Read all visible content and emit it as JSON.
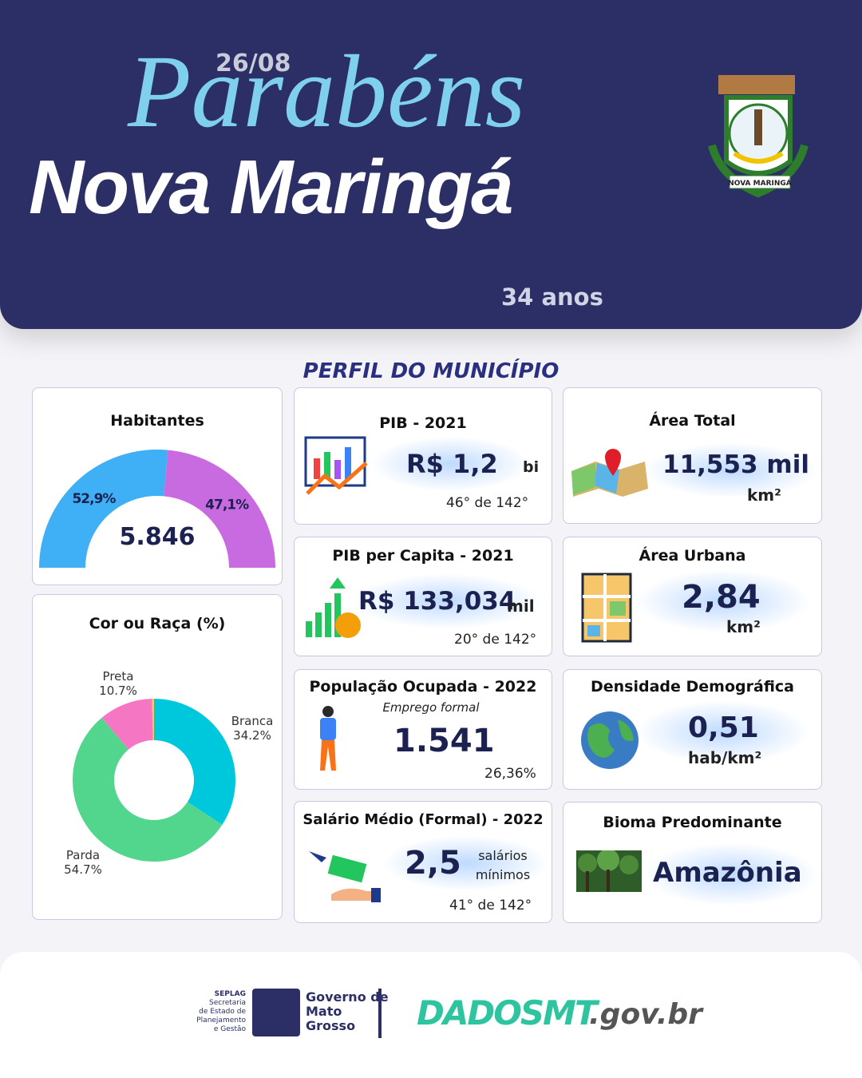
{
  "header": {
    "date": "26/08",
    "greeting": "Parabéns",
    "city": "Nova Maringá",
    "age": "34 anos",
    "emblem_text": "NOVA MARINGÁ"
  },
  "section_title": "PERFIL DO MUNICÍPIO",
  "chart_data": [
    {
      "type": "half-donut",
      "title": "Habitantes",
      "total_label": "5.846",
      "values": [
        52.9,
        47.1
      ],
      "value_labels": [
        "52,9%",
        "47,1%"
      ],
      "colors": [
        "#3fb0f5",
        "#c86ae0"
      ]
    },
    {
      "type": "donut",
      "title": "Cor ou Raça (%)",
      "categories": [
        "Branca",
        "Parda",
        "Preta",
        null
      ],
      "values": [
        34.2,
        54.7,
        10.7,
        0.4
      ],
      "value_labels": [
        "34.2%",
        "54.7%",
        "10.7%",
        null
      ],
      "colors": [
        "#00c8dc",
        "#52d68e",
        "#f576c3",
        "#f2d04f"
      ]
    }
  ],
  "cards": {
    "pib": {
      "title": "PIB - 2021",
      "value": "R$ 1,2",
      "unit": "bi",
      "rank": "46°  de 142°"
    },
    "area_total": {
      "title": "Área Total",
      "value": "11,553 mil",
      "unit": "km²"
    },
    "pib_capita": {
      "title": "PIB per Capita - 2021",
      "value": "R$ 133,034",
      "unit": "mil",
      "rank": "20° de 142°"
    },
    "area_urbana": {
      "title": "Área Urbana",
      "value": "2,84",
      "unit": "km²"
    },
    "populacao": {
      "title": "População  Ocupada - 2022",
      "subtitle": "Emprego formal",
      "value": "1.541",
      "note": "26,36%"
    },
    "densidade": {
      "title": "Densidade Demográfica",
      "value": "0,51",
      "unit": "hab/km²"
    },
    "salario": {
      "title": "Salário Médio (Formal) - 2022",
      "value": "2,5",
      "unit": "salários mínimos",
      "rank": "41° de 142°"
    },
    "bioma": {
      "title": "Bioma Predominante",
      "value": "Amazônia"
    }
  },
  "footer": {
    "seplag": [
      "SEPLAG",
      "Secretaria",
      "de Estado de",
      "Planejamento",
      "e Gestão"
    ],
    "governo": [
      "Governo de",
      "Mato",
      "Grosso"
    ],
    "dados": "DADOSMT",
    "domain": ".gov.br"
  }
}
